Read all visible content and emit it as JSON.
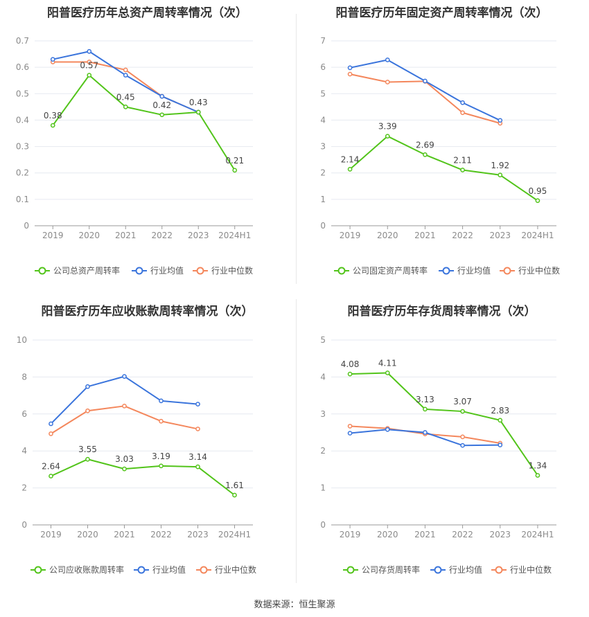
{
  "source_label": "数据来源：恒生聚源",
  "colors": {
    "company": "#52c41a",
    "avg": "#3a74dc",
    "median": "#f4875c",
    "grid": "#e6e9f0",
    "axis": "#999999",
    "text": "#666666"
  },
  "chart_data": [
    {
      "type": "line",
      "title": "阳普医疗历年总资产周转率情况（次）",
      "categories": [
        "2019",
        "2020",
        "2021",
        "2022",
        "2023",
        "2024H1"
      ],
      "ylim": [
        0,
        0.7
      ],
      "yticks": [
        "0",
        "0.1",
        "0.2",
        "0.3",
        "0.4",
        "0.5",
        "0.6",
        "0.7"
      ],
      "series": [
        {
          "name": "公司总资产周转率",
          "role": "company",
          "values": [
            0.38,
            0.57,
            0.45,
            0.42,
            0.43,
            0.21
          ],
          "labels": [
            "0.38",
            "0.57",
            "0.45",
            "0.42",
            "0.43",
            "0.21"
          ]
        },
        {
          "name": "行业均值",
          "role": "avg",
          "values": [
            0.63,
            0.66,
            0.57,
            0.49,
            0.43,
            null
          ]
        },
        {
          "name": "行业中位数",
          "role": "median",
          "values": [
            0.62,
            0.62,
            0.59,
            0.49,
            0.43,
            null
          ]
        }
      ]
    },
    {
      "type": "line",
      "title": "阳普医疗历年固定资产周转率情况（次）",
      "categories": [
        "2019",
        "2020",
        "2021",
        "2022",
        "2023",
        "2024H1"
      ],
      "ylim": [
        0,
        7
      ],
      "yticks": [
        "0",
        "1",
        "2",
        "3",
        "4",
        "5",
        "6",
        "7"
      ],
      "series": [
        {
          "name": "公司固定资产周转率",
          "role": "company",
          "values": [
            2.14,
            3.39,
            2.69,
            2.11,
            1.92,
            0.95
          ],
          "labels": [
            "2.14",
            "3.39",
            "2.69",
            "2.11",
            "1.92",
            "0.95"
          ]
        },
        {
          "name": "行业均值",
          "role": "avg",
          "values": [
            5.98,
            6.28,
            5.48,
            4.66,
            3.99,
            null
          ]
        },
        {
          "name": "行业中位数",
          "role": "median",
          "values": [
            5.74,
            5.44,
            5.47,
            4.28,
            3.88,
            null
          ]
        }
      ]
    },
    {
      "type": "line",
      "title": "阳普医疗历年应收账款周转率情况（次）",
      "categories": [
        "2019",
        "2020",
        "2021",
        "2022",
        "2023",
        "2024H1"
      ],
      "ylim": [
        0,
        10
      ],
      "yticks": [
        "0",
        "2",
        "4",
        "6",
        "8",
        "10"
      ],
      "series": [
        {
          "name": "公司应收账款周转率",
          "role": "company",
          "values": [
            2.64,
            3.55,
            3.03,
            3.19,
            3.14,
            1.61
          ],
          "labels": [
            "2.64",
            "3.55",
            "3.03",
            "3.19",
            "3.14",
            "1.61"
          ]
        },
        {
          "name": "行业均值",
          "role": "avg",
          "values": [
            5.47,
            7.48,
            8.03,
            6.71,
            6.53,
            null
          ]
        },
        {
          "name": "行业中位数",
          "role": "median",
          "values": [
            4.93,
            6.17,
            6.43,
            5.61,
            5.19,
            null
          ]
        }
      ]
    },
    {
      "type": "line",
      "title": "阳普医疗历年存货周转率情况（次）",
      "categories": [
        "2019",
        "2020",
        "2021",
        "2022",
        "2023",
        "2024H1"
      ],
      "ylim": [
        0,
        5
      ],
      "yticks": [
        "0",
        "1",
        "2",
        "3",
        "4",
        "5"
      ],
      "series": [
        {
          "name": "公司存货周转率",
          "role": "company",
          "values": [
            4.08,
            4.11,
            3.13,
            3.07,
            2.83,
            1.34
          ],
          "labels": [
            "4.08",
            "4.11",
            "3.13",
            "3.07",
            "2.83",
            "1.34"
          ]
        },
        {
          "name": "行业均值",
          "role": "avg",
          "values": [
            2.48,
            2.58,
            2.5,
            2.15,
            2.16,
            null
          ]
        },
        {
          "name": "行业中位数",
          "role": "median",
          "values": [
            2.67,
            2.61,
            2.46,
            2.38,
            2.21,
            null
          ]
        }
      ]
    }
  ]
}
